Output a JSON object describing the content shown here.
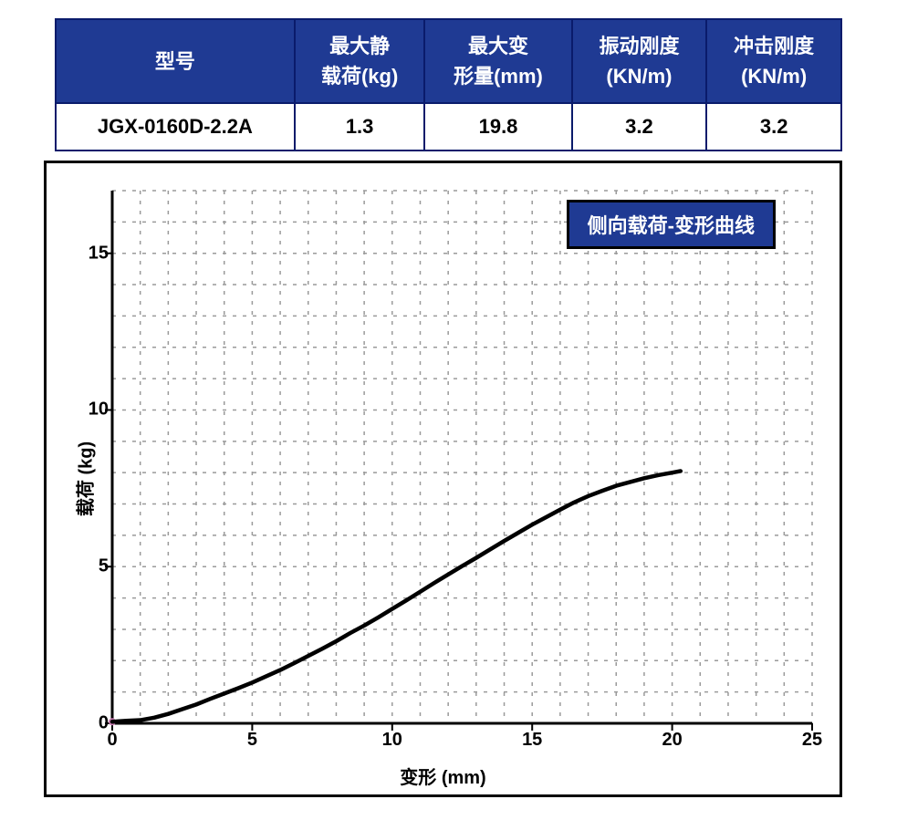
{
  "table": {
    "headers": [
      "型号",
      "最大静\n载荷(kg)",
      "最大变\n形量(mm)",
      "振动刚度\n(KN/m)",
      "冲击刚度\n(KN/m)"
    ],
    "header_bg": "#1f3a93",
    "header_fg": "#ffffff",
    "border_color": "#0a1b6b",
    "row": [
      "JGX-0160D-2.2A",
      "1.3",
      "19.8",
      "3.2",
      "3.2"
    ],
    "header_fontsize": 22,
    "cell_fontsize": 22
  },
  "chart": {
    "type": "line",
    "legend_text": "侧向载荷-变形曲线",
    "legend_bg": "#1f3a93",
    "legend_fg": "#ffffff",
    "legend_border": "#000000",
    "xlabel": "变形 (mm)",
    "ylabel": "载荷 (kg)",
    "label_fontsize": 20,
    "tick_fontsize": 20,
    "background_color": "#ffffff",
    "frame_color": "#000000",
    "axis_line_width": 3,
    "grid_minor_color": "#9a9a9a",
    "grid_minor_dash": "4 7",
    "grid_minor_width": 1.5,
    "xlim": [
      0,
      25
    ],
    "ylim": [
      0,
      17
    ],
    "xticks": [
      0,
      5,
      10,
      15,
      20,
      25
    ],
    "yticks": [
      0,
      5,
      10,
      15
    ],
    "x_minor_step": 1,
    "y_minor_step": 1,
    "curve_color": "#000000",
    "curve_width": 4.5,
    "marker_start_color": "#c77bb0",
    "curve": [
      [
        0.0,
        0.05
      ],
      [
        0.5,
        0.08
      ],
      [
        1.0,
        0.1
      ],
      [
        1.5,
        0.18
      ],
      [
        2.0,
        0.3
      ],
      [
        2.5,
        0.45
      ],
      [
        3.0,
        0.6
      ],
      [
        3.5,
        0.78
      ],
      [
        4.0,
        0.95
      ],
      [
        4.5,
        1.12
      ],
      [
        5.0,
        1.3
      ],
      [
        5.5,
        1.5
      ],
      [
        6.0,
        1.7
      ],
      [
        6.5,
        1.92
      ],
      [
        7.0,
        2.15
      ],
      [
        7.5,
        2.38
      ],
      [
        8.0,
        2.62
      ],
      [
        8.5,
        2.88
      ],
      [
        9.0,
        3.12
      ],
      [
        9.5,
        3.38
      ],
      [
        10.0,
        3.65
      ],
      [
        10.5,
        3.92
      ],
      [
        11.0,
        4.2
      ],
      [
        11.5,
        4.48
      ],
      [
        12.0,
        4.75
      ],
      [
        12.5,
        5.02
      ],
      [
        13.0,
        5.28
      ],
      [
        13.5,
        5.55
      ],
      [
        14.0,
        5.82
      ],
      [
        14.5,
        6.08
      ],
      [
        15.0,
        6.34
      ],
      [
        15.5,
        6.58
      ],
      [
        16.0,
        6.82
      ],
      [
        16.5,
        7.05
      ],
      [
        17.0,
        7.25
      ],
      [
        17.5,
        7.42
      ],
      [
        18.0,
        7.58
      ],
      [
        18.5,
        7.7
      ],
      [
        19.0,
        7.82
      ],
      [
        19.5,
        7.92
      ],
      [
        20.0,
        8.0
      ],
      [
        20.3,
        8.05
      ]
    ]
  }
}
